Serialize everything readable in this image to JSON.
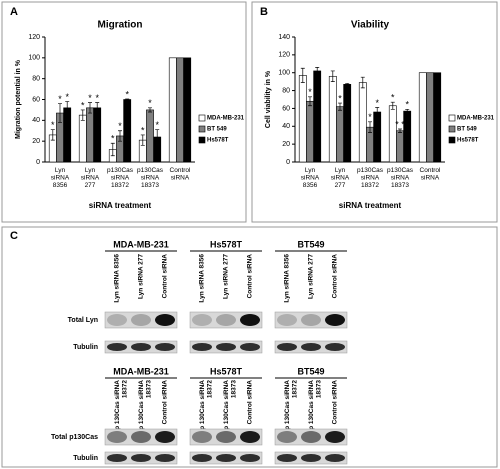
{
  "chart_data": [
    {
      "type": "bar",
      "panel_letter": "A",
      "title": "Migration",
      "y_label": "Migration potential in %",
      "x_label": "siRNA treatment",
      "categories": [
        "Lyn siRNA 8356",
        "Lyn siRNA 277",
        "p130Cas siRNA 18372",
        "p130Cas siRNA 18373",
        "Control siRNA"
      ],
      "series": [
        {
          "name": "MDA-MB-231",
          "color": "#ffffff",
          "values": [
            26,
            45,
            12,
            21,
            100
          ],
          "errors": [
            5,
            5,
            6,
            5,
            null
          ],
          "markers": [
            "*",
            "*",
            "*",
            "*",
            null
          ]
        },
        {
          "name": "BT 549",
          "color": "#808080",
          "values": [
            47,
            52,
            25,
            50,
            100
          ],
          "errors": [
            9,
            5,
            5,
            2,
            null
          ],
          "markers": [
            "*",
            "*",
            "*",
            "*",
            null
          ]
        },
        {
          "name": "Hs578T",
          "color": "#000000",
          "values": [
            52,
            52,
            60,
            24,
            100
          ],
          "errors": [
            6,
            5,
            0.5,
            7,
            null
          ],
          "markers": [
            "*",
            "*",
            "*",
            "*",
            null
          ]
        }
      ],
      "ylim": [
        0,
        120
      ],
      "yticks": [
        0,
        20,
        40,
        60,
        80,
        100,
        120
      ],
      "legend": "right"
    },
    {
      "type": "bar",
      "panel_letter": "B",
      "title": "Viability",
      "y_label": "Cell viability in %",
      "x_label": "siRNA treatment",
      "categories": [
        "Lyn siRNA 8356",
        "Lyn siRNA 277",
        "p130Cas siRNA 18372",
        "p130Cas siRNA 18373",
        "Control siRNA"
      ],
      "series": [
        {
          "name": "MDA-MB-231",
          "color": "#ffffff",
          "values": [
            97,
            96,
            89,
            63,
            100
          ],
          "errors": [
            8,
            6,
            6,
            4,
            null
          ],
          "markers": [
            null,
            null,
            null,
            "*",
            null
          ]
        },
        {
          "name": "BT 549",
          "color": "#808080",
          "values": [
            68,
            62,
            39,
            35,
            100
          ],
          "errors": [
            5,
            4,
            6,
            2,
            null
          ],
          "markers": [
            "*",
            "*",
            "*",
            "* *",
            null
          ]
        },
        {
          "name": "Hs578T",
          "color": "#000000",
          "values": [
            102,
            87,
            56,
            57,
            100
          ],
          "errors": [
            4,
            1,
            5,
            2,
            null
          ],
          "markers": [
            null,
            null,
            "*",
            "*",
            null
          ]
        }
      ],
      "ylim": [
        0,
        140
      ],
      "yticks": [
        0,
        20,
        40,
        60,
        80,
        100,
        120,
        140
      ],
      "legend": "right"
    }
  ],
  "blot": {
    "panel_letter": "C",
    "blocks": [
      {
        "groups": [
          "MDA-MB-231",
          "Hs578T",
          "BT549"
        ],
        "lanes": [
          "Lyn siRNA 8356",
          "Lyn siRNA 277",
          "Control siRNA"
        ],
        "rows": [
          "Total Lyn",
          "Tubulin"
        ]
      },
      {
        "groups": [
          "MDA-MB-231",
          "Hs578T",
          "BT549"
        ],
        "lanes": [
          "p 130Cas siRNA 18372",
          "p 130Cas siRNA 18373",
          "Control siRNA"
        ],
        "rows": [
          "Total p130Cas",
          "Tubulin"
        ]
      }
    ]
  }
}
